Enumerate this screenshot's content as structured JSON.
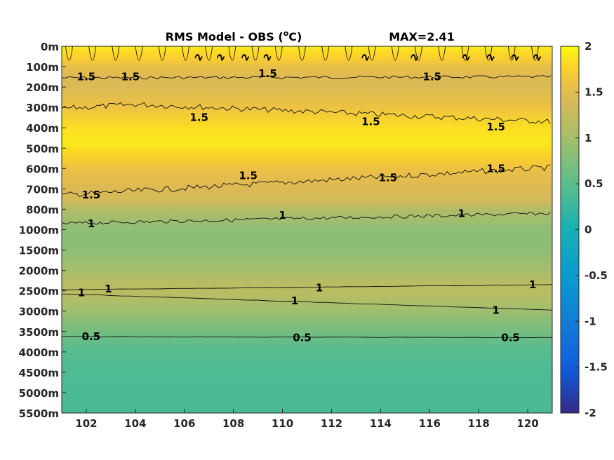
{
  "chart_data": [
    {
      "type": "heatmap",
      "title": "RMS Model - OBS (",
      "title_unit_sup": "o",
      "title_unit_tail": "C)",
      "max_label": "MAX=2.41",
      "x_ticks": [
        "102",
        "104",
        "106",
        "108",
        "110",
        "112",
        "114",
        "116",
        "118",
        "120"
      ],
      "x_tick_values": [
        102,
        104,
        106,
        108,
        110,
        112,
        114,
        116,
        118,
        120
      ],
      "xlim": [
        101,
        121
      ],
      "y_ticks": [
        "0m",
        "100m",
        "200m",
        "300m",
        "400m",
        "500m",
        "600m",
        "700m",
        "800m",
        "1000m",
        "1500m",
        "2000m",
        "2500m",
        "3000m",
        "3500m",
        "4000m",
        "4500m",
        "5000m",
        "5500m"
      ],
      "y_scale": "index of listed depth levels (non-linear depth)",
      "colorbar": {
        "range": [
          -2,
          2
        ],
        "ticks": [
          "2",
          "1.5",
          "1",
          "0.5",
          "0",
          "-0.5",
          "-1",
          "-1.5",
          "-2"
        ],
        "tick_values": [
          2,
          1.5,
          1,
          0.5,
          0,
          -0.5,
          -1,
          -1.5,
          -2
        ],
        "colormap": "parula"
      },
      "depth_profile": {
        "depth_level_index": [
          0,
          0.6,
          1,
          1.6,
          2,
          3,
          4,
          4.8,
          5.5,
          6.2,
          7,
          7.6,
          8,
          9,
          9.5,
          10,
          11,
          11.6,
          12,
          12.4,
          13,
          13.5,
          14,
          14.5,
          15,
          16,
          17,
          18
        ],
        "rms_value": [
          1.9,
          1.75,
          1.55,
          1.45,
          1.42,
          1.6,
          1.85,
          1.9,
          1.75,
          1.55,
          1.45,
          1.35,
          1.1,
          0.85,
          0.82,
          0.85,
          1.0,
          1.15,
          1.18,
          1.1,
          0.95,
          0.8,
          0.68,
          0.55,
          0.45,
          0.4,
          0.38,
          0.37
        ]
      },
      "contour_labels": [
        {
          "text": "1.5",
          "x": 102.0,
          "y_level": 1.5
        },
        {
          "text": "1.5",
          "x": 103.8,
          "y_level": 1.5
        },
        {
          "text": "1.5",
          "x": 109.4,
          "y_level": 1.35
        },
        {
          "text": "1.5",
          "x": 116.1,
          "y_level": 1.5
        },
        {
          "text": "1.5",
          "x": 106.6,
          "y_level": 3.5
        },
        {
          "text": "1.5",
          "x": 113.6,
          "y_level": 3.7
        },
        {
          "text": "1.5",
          "x": 118.7,
          "y_level": 3.95
        },
        {
          "text": "1.5",
          "x": 102.2,
          "y_level": 7.3
        },
        {
          "text": "1.5",
          "x": 108.6,
          "y_level": 6.35
        },
        {
          "text": "1.5",
          "x": 114.3,
          "y_level": 6.45
        },
        {
          "text": "1.5",
          "x": 118.7,
          "y_level": 6.0
        },
        {
          "text": "1",
          "x": 102.2,
          "y_level": 8.7
        },
        {
          "text": "1",
          "x": 110.0,
          "y_level": 8.3
        },
        {
          "text": "1",
          "x": 117.3,
          "y_level": 8.2
        },
        {
          "text": "1",
          "x": 102.9,
          "y_level": 11.9
        },
        {
          "text": "1",
          "x": 111.5,
          "y_level": 11.85
        },
        {
          "text": "1",
          "x": 120.2,
          "y_level": 11.7
        },
        {
          "text": "1",
          "x": 101.8,
          "y_level": 12.1
        },
        {
          "text": "1",
          "x": 110.5,
          "y_level": 12.5
        },
        {
          "text": "1",
          "x": 118.7,
          "y_level": 12.95
        },
        {
          "text": "0.5",
          "x": 102.2,
          "y_level": 14.25
        },
        {
          "text": "0.5",
          "x": 110.8,
          "y_level": 14.3
        },
        {
          "text": "0.5",
          "x": 119.3,
          "y_level": 14.3
        }
      ],
      "surface_contour_labels": [
        {
          "text": "2",
          "x": 106.6
        },
        {
          "text": "2",
          "x": 107.5
        },
        {
          "text": "2",
          "x": 108.5
        },
        {
          "text": "2",
          "x": 109.4
        },
        {
          "text": "2",
          "x": 113.4
        },
        {
          "text": "2",
          "x": 115.4
        },
        {
          "text": "2",
          "x": 117.5
        },
        {
          "text": "2",
          "x": 118.5
        },
        {
          "text": "2",
          "x": 119.5
        },
        {
          "text": "2",
          "x": 120.4
        }
      ]
    }
  ]
}
